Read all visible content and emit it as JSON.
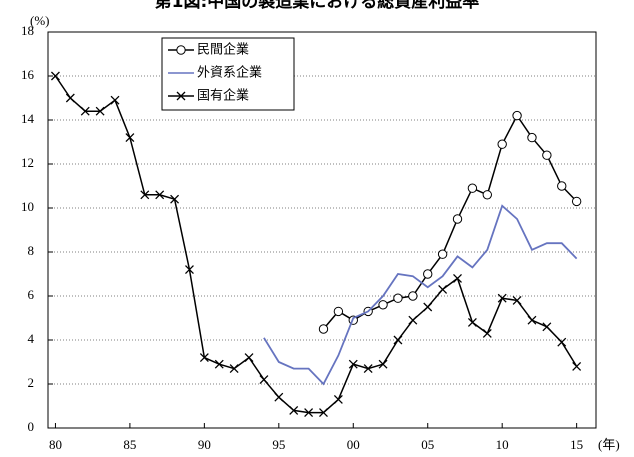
{
  "chart_data": {
    "type": "line",
    "title": "第1図:中国の製造業における総資産利益率",
    "y_unit": "(%)",
    "x_unit": "(年)",
    "xlim": [
      1979.5,
      2016.3
    ],
    "ylim": [
      0,
      18
    ],
    "xticks": [
      {
        "value": 1980,
        "label": "80"
      },
      {
        "value": 1985,
        "label": "85"
      },
      {
        "value": 1990,
        "label": "90"
      },
      {
        "value": 1995,
        "label": "95"
      },
      {
        "value": 2000,
        "label": "00"
      },
      {
        "value": 2005,
        "label": "05"
      },
      {
        "value": 2010,
        "label": "10"
      },
      {
        "value": 2015,
        "label": "15"
      }
    ],
    "yticks": [
      0,
      2,
      4,
      6,
      8,
      10,
      12,
      14,
      16,
      18
    ],
    "grid": true,
    "series": [
      {
        "name": "民間企業",
        "color": "#000000",
        "marker": "circle",
        "x": [
          1998,
          1999,
          2000,
          2001,
          2002,
          2003,
          2004,
          2005,
          2006,
          2007,
          2008,
          2009,
          2010,
          2011,
          2012,
          2013,
          2014,
          2015
        ],
        "values": [
          4.5,
          5.3,
          4.9,
          5.3,
          5.6,
          5.9,
          6.0,
          7.0,
          7.9,
          9.5,
          10.9,
          10.6,
          12.9,
          14.2,
          13.2,
          12.4,
          11.0,
          10.3
        ]
      },
      {
        "name": "外資系企業",
        "color": "#6674c0",
        "marker": "none",
        "x": [
          1994,
          1995,
          1996,
          1997,
          1998,
          1999,
          2000,
          2001,
          2002,
          2003,
          2004,
          2005,
          2006,
          2007,
          2008,
          2009,
          2010,
          2011,
          2012,
          2013,
          2014,
          2015
        ],
        "values": [
          4.1,
          3.0,
          2.7,
          2.7,
          2.0,
          3.3,
          5.0,
          5.3,
          6.0,
          7.0,
          6.9,
          6.4,
          6.9,
          7.8,
          7.3,
          8.1,
          10.1,
          9.5,
          8.1,
          8.4,
          8.4,
          7.7
        ]
      },
      {
        "name": "国有企業",
        "color": "#000000",
        "marker": "x",
        "x": [
          1980,
          1981,
          1982,
          1983,
          1984,
          1985,
          1986,
          1987,
          1988,
          1989,
          1990,
          1991,
          1992,
          1993,
          1994,
          1995,
          1996,
          1997,
          1998,
          1999,
          2000,
          2001,
          2002,
          2003,
          2004,
          2005,
          2006,
          2007,
          2008,
          2009,
          2010,
          2011,
          2012,
          2013,
          2014,
          2015
        ],
        "values": [
          16.0,
          15.0,
          14.4,
          14.4,
          14.9,
          13.2,
          10.6,
          10.6,
          10.4,
          7.2,
          3.2,
          2.9,
          2.7,
          3.2,
          2.2,
          1.4,
          0.8,
          0.7,
          0.7,
          1.3,
          2.9,
          2.7,
          2.9,
          4.0,
          4.9,
          5.5,
          6.3,
          6.8,
          4.8,
          4.3,
          5.9,
          5.8,
          4.9,
          4.6,
          3.9,
          2.8
        ]
      }
    ]
  }
}
